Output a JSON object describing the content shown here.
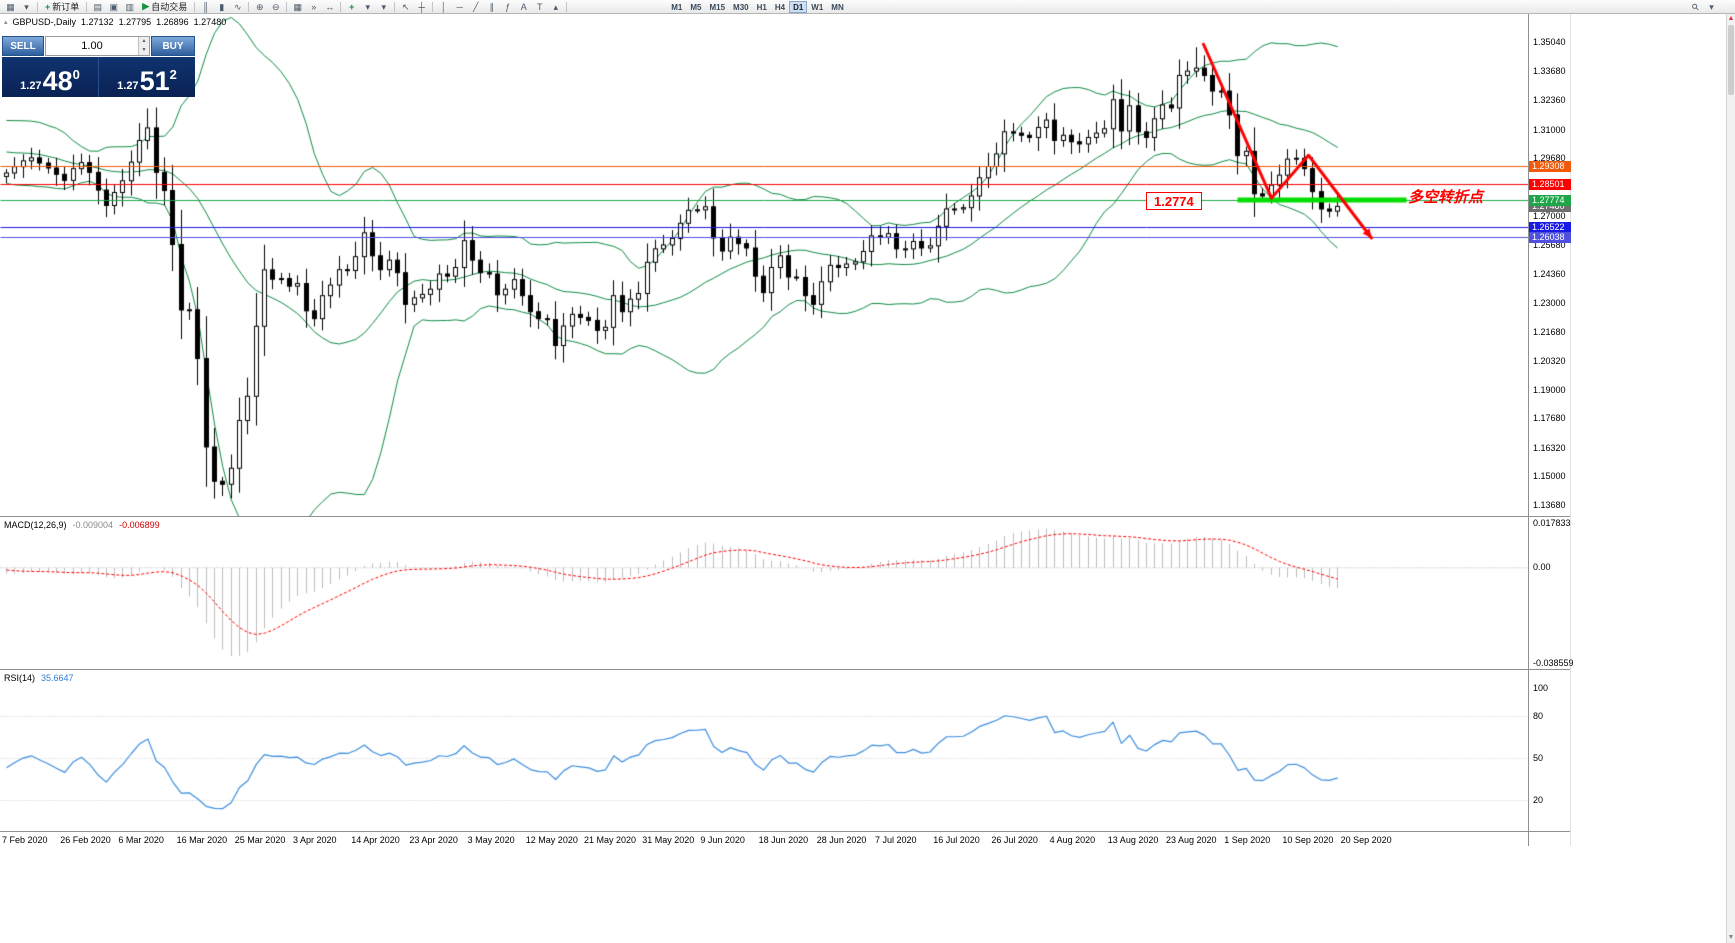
{
  "toolbar": {
    "new_order": "新订单",
    "autotrading": "自动交易",
    "timeframes": [
      "M1",
      "M5",
      "M15",
      "M30",
      "H1",
      "H4",
      "D1",
      "W1",
      "MN"
    ],
    "active_timeframe": "D1",
    "items": [
      {
        "type": "icon",
        "name": "new-chart-icon",
        "glyph": "▦"
      },
      {
        "type": "icon",
        "name": "chart-profiles-icon",
        "glyph": "▾"
      },
      {
        "type": "sep"
      },
      {
        "type": "button",
        "name": "new-order-button",
        "glyph": "+",
        "label": "新订单"
      },
      {
        "type": "sep"
      },
      {
        "type": "icon",
        "name": "market-watch-icon",
        "glyph": "▤"
      },
      {
        "type": "icon",
        "name": "navigator-icon",
        "glyph": "▣"
      },
      {
        "type": "icon",
        "name": "terminal-icon",
        "glyph": "▥"
      },
      {
        "type": "button",
        "name": "autotrading-button",
        "glyph": "▶",
        "label": "自动交易"
      },
      {
        "type": "sep"
      },
      {
        "type": "icon",
        "name": "bar-chart-icon",
        "glyph": "║"
      },
      {
        "type": "icon",
        "name": "candlestick-chart-icon",
        "glyph": "▮"
      },
      {
        "type": "icon",
        "name": "line-chart-icon",
        "glyph": "∿"
      },
      {
        "type": "sep"
      },
      {
        "type": "icon",
        "name": "zoom-in-icon",
        "glyph": "⊕"
      },
      {
        "type": "icon",
        "name": "zoom-out-icon",
        "glyph": "⊖"
      },
      {
        "type": "sep"
      },
      {
        "type": "icon",
        "name": "tile-windows-icon",
        "glyph": "▦"
      },
      {
        "type": "icon",
        "name": "auto-scroll-icon",
        "glyph": "»"
      },
      {
        "type": "icon",
        "name": "chart-shift-icon",
        "glyph": "↔"
      },
      {
        "type": "sep"
      },
      {
        "type": "icon",
        "name": "indicators-icon",
        "glyph": "+",
        "green": true
      },
      {
        "type": "icon",
        "name": "indicators-dropdown-icon",
        "glyph": "▾"
      },
      {
        "type": "icon",
        "name": "timeframes-dropdown-icon",
        "glyph": "▾"
      },
      {
        "type": "sep"
      },
      {
        "type": "icon",
        "name": "cursor-icon",
        "glyph": "↖"
      },
      {
        "type": "icon",
        "name": "crosshair-icon",
        "glyph": "┼"
      },
      {
        "type": "sep"
      },
      {
        "type": "icon",
        "name": "vertical-line-icon",
        "glyph": "│"
      },
      {
        "type": "icon",
        "name": "horizontal-line-icon",
        "glyph": "─"
      },
      {
        "type": "icon",
        "name": "trendline-icon",
        "glyph": "╱"
      },
      {
        "type": "icon",
        "name": "channel-icon",
        "glyph": "∥"
      },
      {
        "type": "icon",
        "name": "fibonacci-icon",
        "glyph": "ƒ"
      },
      {
        "type": "icon",
        "name": "text-icon",
        "glyph": "A"
      },
      {
        "type": "icon",
        "name": "text-label-icon",
        "glyph": "T"
      },
      {
        "type": "icon",
        "name": "arrows-tool-icon",
        "glyph": "▴"
      },
      {
        "type": "sep"
      },
      {
        "type": "gap",
        "w": 96
      },
      {
        "type": "timeframes"
      },
      {
        "type": "flex"
      },
      {
        "type": "icon",
        "name": "search-icon",
        "glyph": "⚲"
      },
      {
        "type": "icon",
        "name": "menu-more-icon",
        "glyph": "▾"
      },
      {
        "type": "gap",
        "w": 12
      }
    ]
  },
  "one_click": {
    "sell_label": "SELL",
    "buy_label": "BUY",
    "volume": "1.00",
    "sell_price_prefix": "1.27",
    "sell_price_big": "48",
    "sell_price_sup": "0",
    "buy_price_prefix": "1.27",
    "buy_price_big": "51",
    "buy_price_sup": "2"
  },
  "annotations": {
    "price_flag": "1.2774",
    "turning_point": "多空转折点",
    "annotation_color": "#FF0000"
  },
  "chart_data": {
    "type": "candlestick",
    "symbol_period": "GBPUSD-,Daily",
    "symbol": "GBPUSD",
    "timeframe": "Daily",
    "ohlc_display": {
      "open": "1.27132",
      "high": "1.27795",
      "low": "1.26896",
      "close": "1.27480"
    },
    "ylim": [
      1.1368,
      1.3633
    ],
    "y_axis_ticks": [
      "1.35040",
      "1.33680",
      "1.32360",
      "1.31000",
      "1.29680",
      "1.27000",
      "1.25680",
      "1.24360",
      "1.23000",
      "1.21680",
      "1.20320",
      "1.19000",
      "1.17680",
      "1.16320",
      "1.15000",
      "1.13680"
    ],
    "x_axis_dates": [
      "7 Feb 2020",
      "26 Feb 2020",
      "6 Mar 2020",
      "16 Mar 2020",
      "25 Mar 2020",
      "3 Apr 2020",
      "14 Apr 2020",
      "23 Apr 2020",
      "3 May 2020",
      "12 May 2020",
      "21 May 2020",
      "31 May 2020",
      "9 Jun 2020",
      "18 Jun 2020",
      "28 Jun 2020",
      "7 Jul 2020",
      "16 Jul 2020",
      "26 Jul 2020",
      "4 Aug 2020",
      "13 Aug 2020",
      "23 Aug 2020",
      "1 Sep 2020",
      "10 Sep 2020",
      "20 Sep 2020"
    ],
    "candle_up_color": "#ffffff",
    "candle_down_color": "#000000",
    "candle_border_color": "#000000",
    "warmup_closes": [
      1.2978,
      1.3002,
      1.2986,
      1.301,
      1.3048,
      1.3092,
      1.3078,
      1.3112,
      1.3126,
      1.3082,
      1.3046,
      1.3002,
      1.2962,
      1.293,
      1.2902,
      1.2942,
      1.2996,
      1.2962,
      1.2912,
      1.2886
    ],
    "closes": [
      1.2902,
      1.2931,
      1.2958,
      1.2972,
      1.2948,
      1.2925,
      1.2896,
      1.2868,
      1.2922,
      1.295,
      1.2905,
      1.2823,
      1.2752,
      1.2812,
      1.2866,
      1.2952,
      1.3052,
      1.311,
      1.2905,
      1.2821,
      1.2572,
      1.227,
      1.2271,
      1.2046,
      1.1638,
      1.148,
      1.1466,
      1.154,
      1.176,
      1.1872,
      1.2195,
      1.2455,
      1.2412,
      1.2415,
      1.238,
      1.2392,
      1.2266,
      1.223,
      1.2336,
      1.2385,
      1.2456,
      1.2452,
      1.2516,
      1.2626,
      1.252,
      1.2456,
      1.25,
      1.2442,
      1.2296,
      1.2326,
      1.2342,
      1.2366,
      1.2436,
      1.2426,
      1.2466,
      1.259,
      1.25,
      1.2442,
      1.2436,
      1.234,
      1.2366,
      1.241,
      1.2336,
      1.2262,
      1.223,
      1.2226,
      1.2106,
      1.2196,
      1.225,
      1.2236,
      1.2222,
      1.2176,
      1.219,
      1.2336,
      1.2262,
      1.232,
      1.2346,
      1.249,
      1.2552,
      1.257,
      1.26,
      1.267,
      1.273,
      1.2732,
      1.2746,
      1.2602,
      1.2542,
      1.2606,
      1.2576,
      1.2556,
      1.2426,
      1.235,
      1.2466,
      1.252,
      1.2422,
      1.242,
      1.2336,
      1.2296,
      1.24,
      1.2476,
      1.2466,
      1.2482,
      1.2492,
      1.254,
      1.2612,
      1.2606,
      1.2622,
      1.2552,
      1.2552,
      1.2586,
      1.2556,
      1.2566,
      1.2656,
      1.2736,
      1.2736,
      1.2742,
      1.2796,
      1.288,
      1.2932,
      1.299,
      1.3092,
      1.3086,
      1.3076,
      1.3066,
      1.3112,
      1.3146,
      1.3052,
      1.3076,
      1.3046,
      1.3036,
      1.3066,
      1.3086,
      1.3106,
      1.324,
      1.3096,
      1.3212,
      1.3092,
      1.3066,
      1.3152,
      1.3216,
      1.3202,
      1.3352,
      1.3372,
      1.3386,
      1.3352,
      1.328,
      1.328,
      1.317,
      1.2982,
      1.3002,
      1.2806,
      1.2796,
      1.2846,
      1.2892,
      1.2966,
      1.297,
      1.2922,
      1.2816,
      1.2736,
      1.2726,
      1.2748
    ],
    "wick_overrides": [
      {
        "index": 17,
        "high": 1.32
      },
      {
        "index": 26,
        "low": 1.1412
      },
      {
        "index": 143,
        "high": 1.3482
      }
    ],
    "indicators": {
      "bollinger": {
        "period": 20,
        "deviation": 2,
        "color": "#0e8a42"
      },
      "macd": {
        "label": "MACD(12,26,9)",
        "fast": 12,
        "slow": 26,
        "signal": 9,
        "value_main": "-0.009004",
        "value_signal": "-0.006899",
        "axis_max": "0.017833",
        "axis_zero": "0.00",
        "axis_min": "-0.038559",
        "scale_max": 0.017833,
        "scale_min": -0.038559,
        "histogram_color": "#bdbdbd",
        "signal_color": "#ff0000"
      },
      "rsi": {
        "label": "RSI(14)",
        "period": 14,
        "value": "35.6647",
        "axis_ticks": [
          "100",
          "80",
          "50",
          "20"
        ],
        "levels": [
          80,
          50,
          20
        ],
        "color": "#3e8ede",
        "range": [
          0,
          100
        ]
      }
    },
    "overlays": {
      "hlines": [
        {
          "price": 1.29308,
          "color": "#f05a0a",
          "tag": "1.29308"
        },
        {
          "price": 1.28501,
          "color": "#ff0000",
          "tag": "1.28501"
        },
        {
          "price": 1.27774,
          "color": "#1fa648",
          "tag": "1.27774"
        },
        {
          "price": 1.26522,
          "color": "#1a1ae6",
          "tag": "1.26522"
        },
        {
          "price": 1.26038,
          "color": "#5050e0",
          "tag": "1.26038"
        }
      ],
      "current_price_tag": {
        "text": "1.27480",
        "color": "#6e6e6e"
      },
      "support_segment": {
        "price": 1.27774,
        "x_start": 1237,
        "x_end": 1406,
        "color": "#00dd00",
        "width": 5
      },
      "trend_polyline": {
        "color": "#ff0000",
        "width": 3,
        "points_x_price": [
          [
            1203,
            1.3496
          ],
          [
            1271,
            1.2786
          ],
          [
            1308,
            1.2984
          ],
          [
            1371,
            1.2602
          ]
        ]
      }
    }
  }
}
